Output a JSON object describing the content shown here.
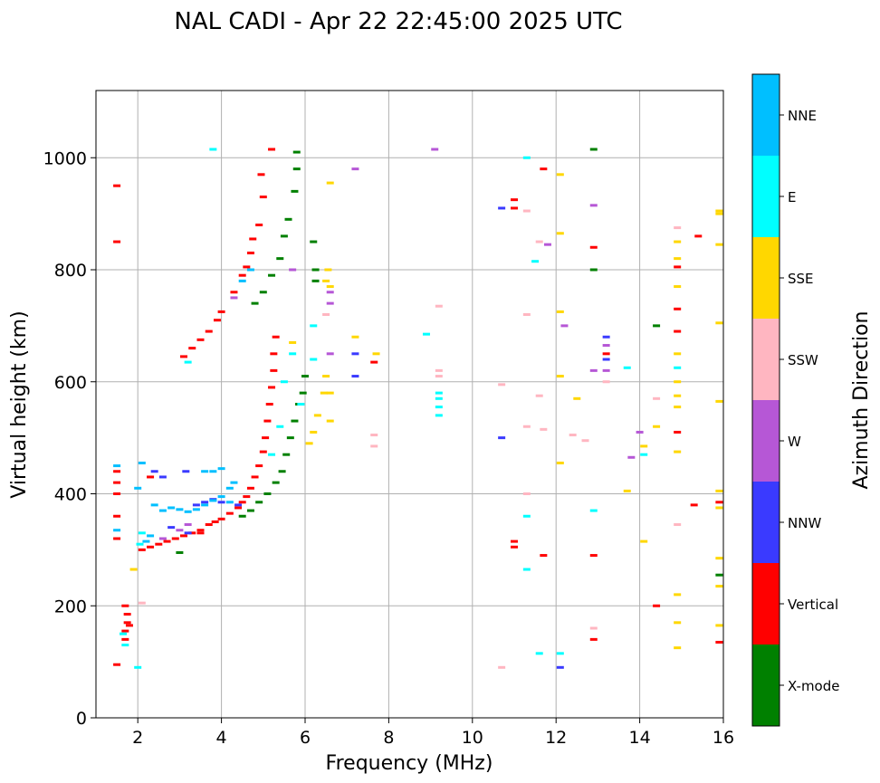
{
  "chart_data": {
    "type": "scatter",
    "title": "NAL CADI - Apr 22 22:45:00 2025 UTC",
    "xlabel": "Frequency (MHz)",
    "ylabel": "Virtual height (km)",
    "xlim": [
      1,
      16
    ],
    "ylim": [
      0,
      1120
    ],
    "x_ticks": [
      2,
      4,
      6,
      8,
      10,
      12,
      14,
      16
    ],
    "y_ticks": [
      0,
      200,
      400,
      600,
      800,
      1000
    ],
    "grid": true,
    "legend_position": "right",
    "colorbar": {
      "title": "Azimuth Direction",
      "categories": [
        {
          "name": "X-mode",
          "color": "#008000"
        },
        {
          "name": "Vertical",
          "color": "#ff0000"
        },
        {
          "name": "NNW",
          "color": "#3a3aff"
        },
        {
          "name": "W",
          "color": "#b657d6"
        },
        {
          "name": "SSW",
          "color": "#ffb6c1"
        },
        {
          "name": "SSE",
          "color": "#ffd700"
        },
        {
          "name": "E",
          "color": "#00ffff"
        },
        {
          "name": "NNE",
          "color": "#00bfff"
        }
      ]
    },
    "series": [
      {
        "name": "Vertical",
        "color": "#ff0000",
        "points": [
          [
            1.5,
            95
          ],
          [
            1.5,
            320
          ],
          [
            1.5,
            360
          ],
          [
            1.5,
            400
          ],
          [
            1.5,
            420
          ],
          [
            1.5,
            440
          ],
          [
            1.5,
            850
          ],
          [
            1.5,
            950
          ],
          [
            1.7,
            140
          ],
          [
            1.7,
            155
          ],
          [
            1.75,
            170
          ],
          [
            1.75,
            185
          ],
          [
            1.7,
            200
          ],
          [
            1.8,
            165
          ],
          [
            2.1,
            300
          ],
          [
            2.3,
            305
          ],
          [
            2.5,
            310
          ],
          [
            2.7,
            315
          ],
          [
            2.9,
            320
          ],
          [
            3.1,
            325
          ],
          [
            3.3,
            330
          ],
          [
            3.5,
            335
          ],
          [
            3.7,
            345
          ],
          [
            3.85,
            350
          ],
          [
            4.0,
            355
          ],
          [
            4.2,
            365
          ],
          [
            4.4,
            375
          ],
          [
            4.5,
            385
          ],
          [
            4.6,
            395
          ],
          [
            4.7,
            410
          ],
          [
            4.8,
            430
          ],
          [
            4.9,
            450
          ],
          [
            5.0,
            475
          ],
          [
            5.05,
            500
          ],
          [
            5.1,
            530
          ],
          [
            5.15,
            560
          ],
          [
            5.2,
            590
          ],
          [
            5.25,
            620
          ],
          [
            5.25,
            650
          ],
          [
            5.3,
            680
          ],
          [
            3.1,
            645
          ],
          [
            3.3,
            660
          ],
          [
            3.5,
            675
          ],
          [
            3.7,
            690
          ],
          [
            3.9,
            710
          ],
          [
            4.0,
            725
          ],
          [
            4.3,
            760
          ],
          [
            4.5,
            790
          ],
          [
            4.6,
            805
          ],
          [
            4.7,
            830
          ],
          [
            4.75,
            855
          ],
          [
            4.9,
            880
          ],
          [
            5.0,
            930
          ],
          [
            4.95,
            970
          ],
          [
            5.2,
            1015
          ],
          [
            2.3,
            430
          ],
          [
            3.5,
            330
          ],
          [
            7.65,
            635
          ],
          [
            11.0,
            315
          ],
          [
            11.0,
            305
          ],
          [
            11.0,
            910
          ],
          [
            11.0,
            925
          ],
          [
            11.7,
            290
          ],
          [
            11.7,
            980
          ],
          [
            12.9,
            140
          ],
          [
            12.9,
            290
          ],
          [
            12.9,
            840
          ],
          [
            13.2,
            650
          ],
          [
            14.4,
            200
          ],
          [
            14.9,
            730
          ],
          [
            14.9,
            690
          ],
          [
            14.9,
            510
          ],
          [
            14.9,
            805
          ],
          [
            15.3,
            380
          ],
          [
            15.4,
            860
          ],
          [
            15.9,
            385
          ],
          [
            15.9,
            135
          ]
        ]
      },
      {
        "name": "X-mode",
        "color": "#008000",
        "points": [
          [
            3.0,
            295
          ],
          [
            4.5,
            360
          ],
          [
            4.7,
            370
          ],
          [
            4.9,
            385
          ],
          [
            5.1,
            400
          ],
          [
            5.3,
            420
          ],
          [
            5.45,
            440
          ],
          [
            5.55,
            470
          ],
          [
            5.65,
            500
          ],
          [
            5.75,
            530
          ],
          [
            5.85,
            560
          ],
          [
            5.95,
            580
          ],
          [
            6.0,
            610
          ],
          [
            4.8,
            740
          ],
          [
            5.0,
            760
          ],
          [
            5.2,
            790
          ],
          [
            5.4,
            820
          ],
          [
            5.5,
            860
          ],
          [
            5.6,
            890
          ],
          [
            5.75,
            940
          ],
          [
            5.8,
            980
          ],
          [
            5.8,
            1010
          ],
          [
            6.25,
            800
          ],
          [
            6.25,
            780
          ],
          [
            6.2,
            850
          ],
          [
            12.9,
            1015
          ],
          [
            12.9,
            800
          ],
          [
            14.4,
            700
          ],
          [
            15.9,
            255
          ]
        ]
      },
      {
        "name": "NNW",
        "color": "#3a3aff",
        "points": [
          [
            2.4,
            440
          ],
          [
            2.6,
            430
          ],
          [
            3.15,
            440
          ],
          [
            3.4,
            380
          ],
          [
            3.6,
            385
          ],
          [
            3.8,
            390
          ],
          [
            4.0,
            385
          ],
          [
            3.2,
            330
          ],
          [
            2.8,
            340
          ],
          [
            4.4,
            380
          ],
          [
            7.2,
            610
          ],
          [
            7.2,
            650
          ],
          [
            10.7,
            500
          ],
          [
            10.7,
            910
          ],
          [
            12.1,
            90
          ],
          [
            13.2,
            680
          ],
          [
            13.2,
            640
          ]
        ]
      },
      {
        "name": "W",
        "color": "#b657d6",
        "points": [
          [
            3.0,
            335
          ],
          [
            3.2,
            345
          ],
          [
            2.6,
            320
          ],
          [
            4.3,
            750
          ],
          [
            5.7,
            800
          ],
          [
            6.6,
            740
          ],
          [
            6.6,
            760
          ],
          [
            6.6,
            650
          ],
          [
            7.2,
            980
          ],
          [
            9.1,
            1015
          ],
          [
            11.8,
            845
          ],
          [
            12.2,
            700
          ],
          [
            12.9,
            620
          ],
          [
            12.9,
            915
          ],
          [
            13.2,
            665
          ],
          [
            13.2,
            620
          ],
          [
            13.8,
            465
          ],
          [
            14.0,
            510
          ]
        ]
      },
      {
        "name": "SSW",
        "color": "#ffb6c1",
        "points": [
          [
            2.1,
            205
          ],
          [
            6.5,
            720
          ],
          [
            7.65,
            505
          ],
          [
            7.65,
            485
          ],
          [
            9.2,
            735
          ],
          [
            9.2,
            620
          ],
          [
            9.2,
            610
          ],
          [
            10.7,
            90
          ],
          [
            10.7,
            595
          ],
          [
            11.3,
            520
          ],
          [
            11.3,
            720
          ],
          [
            11.3,
            400
          ],
          [
            11.3,
            905
          ],
          [
            11.6,
            850
          ],
          [
            11.6,
            575
          ],
          [
            11.7,
            515
          ],
          [
            12.4,
            505
          ],
          [
            12.7,
            495
          ],
          [
            12.9,
            160
          ],
          [
            13.2,
            600
          ],
          [
            14.4,
            570
          ],
          [
            14.9,
            875
          ],
          [
            14.9,
            345
          ]
        ]
      },
      {
        "name": "SSE",
        "color": "#ffd700",
        "points": [
          [
            1.9,
            265
          ],
          [
            5.7,
            670
          ],
          [
            6.1,
            490
          ],
          [
            6.2,
            510
          ],
          [
            6.3,
            540
          ],
          [
            6.45,
            580
          ],
          [
            6.6,
            580
          ],
          [
            6.6,
            530
          ],
          [
            6.5,
            610
          ],
          [
            6.5,
            780
          ],
          [
            6.55,
            800
          ],
          [
            6.6,
            770
          ],
          [
            6.6,
            955
          ],
          [
            7.2,
            680
          ],
          [
            7.7,
            650
          ],
          [
            12.1,
            970
          ],
          [
            12.1,
            865
          ],
          [
            12.1,
            725
          ],
          [
            12.1,
            610
          ],
          [
            12.1,
            455
          ],
          [
            12.5,
            570
          ],
          [
            13.7,
            405
          ],
          [
            14.1,
            485
          ],
          [
            14.1,
            315
          ],
          [
            14.4,
            520
          ],
          [
            14.9,
            850
          ],
          [
            14.9,
            820
          ],
          [
            14.9,
            770
          ],
          [
            14.9,
            650
          ],
          [
            14.9,
            600
          ],
          [
            14.9,
            575
          ],
          [
            14.9,
            555
          ],
          [
            14.9,
            475
          ],
          [
            14.9,
            220
          ],
          [
            14.9,
            170
          ],
          [
            14.9,
            125
          ],
          [
            15.9,
            900
          ],
          [
            15.9,
            905
          ],
          [
            15.9,
            845
          ],
          [
            15.9,
            705
          ],
          [
            15.9,
            565
          ],
          [
            15.9,
            405
          ],
          [
            15.9,
            375
          ],
          [
            15.9,
            285
          ],
          [
            15.9,
            235
          ],
          [
            15.9,
            165
          ]
        ]
      },
      {
        "name": "E",
        "color": "#00ffff",
        "points": [
          [
            1.7,
            130
          ],
          [
            1.65,
            150
          ],
          [
            2.0,
            90
          ],
          [
            2.05,
            310
          ],
          [
            2.1,
            330
          ],
          [
            3.2,
            635
          ],
          [
            3.8,
            1015
          ],
          [
            5.2,
            470
          ],
          [
            5.4,
            520
          ],
          [
            5.5,
            600
          ],
          [
            5.7,
            650
          ],
          [
            5.9,
            560
          ],
          [
            6.2,
            700
          ],
          [
            6.2,
            640
          ],
          [
            8.9,
            685
          ],
          [
            9.2,
            540
          ],
          [
            9.2,
            555
          ],
          [
            9.2,
            570
          ],
          [
            9.2,
            580
          ],
          [
            11.3,
            1000
          ],
          [
            11.3,
            360
          ],
          [
            11.3,
            265
          ],
          [
            11.5,
            815
          ],
          [
            11.6,
            115
          ],
          [
            12.1,
            115
          ],
          [
            12.9,
            370
          ],
          [
            13.7,
            625
          ],
          [
            14.1,
            470
          ],
          [
            14.9,
            625
          ]
        ]
      },
      {
        "name": "NNE",
        "color": "#00bfff",
        "points": [
          [
            1.5,
            335
          ],
          [
            1.5,
            450
          ],
          [
            2.1,
            455
          ],
          [
            2.4,
            380
          ],
          [
            2.6,
            370
          ],
          [
            2.8,
            375
          ],
          [
            3.0,
            372
          ],
          [
            3.2,
            368
          ],
          [
            3.4,
            372
          ],
          [
            3.6,
            380
          ],
          [
            3.8,
            388
          ],
          [
            4.0,
            395
          ],
          [
            4.2,
            410
          ],
          [
            4.3,
            420
          ],
          [
            3.8,
            440
          ],
          [
            4.0,
            445
          ],
          [
            3.6,
            440
          ],
          [
            4.5,
            780
          ],
          [
            4.7,
            800
          ],
          [
            4.2,
            385
          ],
          [
            2.2,
            315
          ],
          [
            2.3,
            325
          ],
          [
            2.0,
            410
          ]
        ]
      }
    ]
  }
}
